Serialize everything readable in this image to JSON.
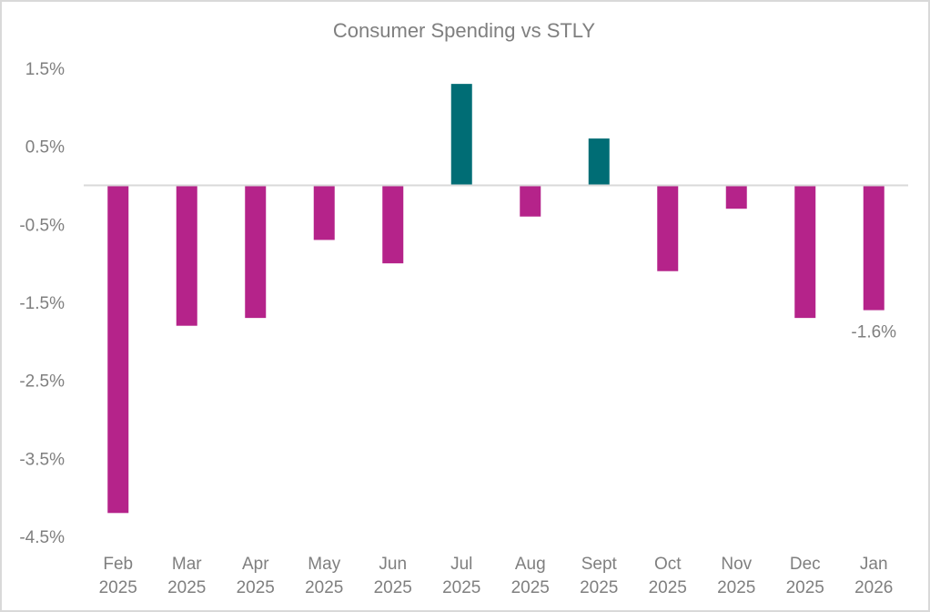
{
  "chart_data": {
    "type": "bar",
    "title": "Consumer Spending vs STLY",
    "xlabel": "",
    "ylabel": "",
    "categories": [
      [
        "Feb",
        "2025"
      ],
      [
        "Mar",
        "2025"
      ],
      [
        "Apr",
        "2025"
      ],
      [
        "May",
        "2025"
      ],
      [
        "Jun",
        "2025"
      ],
      [
        "Jul",
        "2025"
      ],
      [
        "Aug",
        "2025"
      ],
      [
        "Sept",
        "2025"
      ],
      [
        "Oct",
        "2025"
      ],
      [
        "Nov",
        "2025"
      ],
      [
        "Dec",
        "2025"
      ],
      [
        "Jan",
        "2026"
      ]
    ],
    "values": [
      -4.2,
      -1.8,
      -1.7,
      -0.7,
      -1.0,
      1.3,
      -0.4,
      0.6,
      -1.1,
      -0.3,
      -1.7,
      -1.6
    ],
    "ylim": [
      -4.5,
      1.5
    ],
    "yticks": [
      1.5,
      0.5,
      -0.5,
      -1.5,
      -2.5,
      -3.5,
      -4.5
    ],
    "ytick_labels": [
      "1.5%",
      "0.5%",
      "-0.5%",
      "-1.5%",
      "-2.5%",
      "-3.5%",
      "-4.5%"
    ],
    "grid": false,
    "legend": "none",
    "data_labels": [
      {
        "category_index": 11,
        "text": "-1.6%"
      }
    ],
    "colors": {
      "negative": "#B5238A",
      "positive": "#006D75",
      "text": "#7F7F7F",
      "axis": "#D9D9D9"
    }
  }
}
